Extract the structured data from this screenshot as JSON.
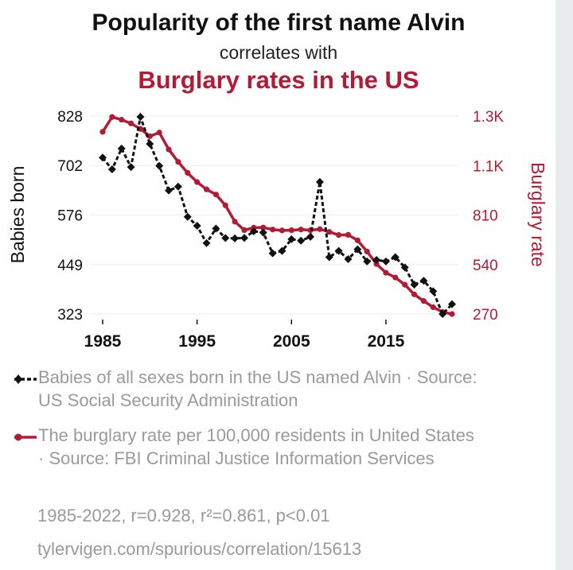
{
  "header": {
    "title": "Popularity of the first name Alvin",
    "subtitle": "correlates with",
    "title2": "Burglary rates in the US"
  },
  "colors": {
    "left_series": "#111111",
    "right_series": "#b31b34",
    "meta_text": "#9a9a9a"
  },
  "chart_data": {
    "type": "line",
    "x": [
      1985,
      1986,
      1987,
      1988,
      1989,
      1990,
      1991,
      1992,
      1993,
      1994,
      1995,
      1996,
      1997,
      1998,
      1999,
      2000,
      2001,
      2002,
      2003,
      2004,
      2005,
      2006,
      2007,
      2008,
      2009,
      2010,
      2011,
      2012,
      2013,
      2014,
      2015,
      2016,
      2017,
      2018,
      2019,
      2020,
      2021,
      2022
    ],
    "xticks": [
      1985,
      1995,
      2005,
      2015
    ],
    "xticklabels": [
      "1985",
      "1995",
      "2005",
      "2015"
    ],
    "series": [
      {
        "name": "Babies of all sexes born in the US named Alvin",
        "axis": "left",
        "style": "dashed-diamond",
        "values": [
          722,
          692,
          745,
          698,
          826,
          757,
          701,
          638,
          648,
          571,
          548,
          504,
          541,
          517,
          516,
          517,
          534,
          531,
          478,
          484,
          514,
          510,
          520,
          660,
          468,
          484,
          463,
          488,
          457,
          461,
          457,
          468,
          442,
          398,
          408,
          381,
          323,
          348
        ]
      },
      {
        "name": "The burglary rate per 100,000 residents in United States",
        "axis": "right",
        "style": "solid-dot",
        "values": [
          1264,
          1345,
          1330,
          1310,
          1280,
          1240,
          1260,
          1168,
          1100,
          1040,
          990,
          950,
          922,
          863,
          774,
          728,
          741,
          742,
          731,
          726,
          727,
          731,
          727,
          733,
          718,
          701,
          702,
          672,
          611,
          543,
          495,
          469,
          430,
          377,
          341,
          307,
          281,
          270
        ]
      }
    ],
    "left_axis": {
      "label": "Babies born",
      "ticks": [
        323,
        449,
        576,
        702,
        828
      ],
      "ticklabels": [
        "323",
        "449",
        "576",
        "702",
        "828"
      ],
      "ylim": [
        323,
        828
      ]
    },
    "right_axis": {
      "label": "Burglary rate",
      "ticks": [
        270,
        540,
        810,
        1080,
        1350
      ],
      "ticklabels": [
        "270",
        "540",
        "810",
        "1.1K",
        "1.3K"
      ],
      "ylim": [
        270,
        1350
      ]
    },
    "grid": "horizontal"
  },
  "legend": {
    "left_text": "Babies of all sexes born in the US named Alvin · Source: US Social Security Administration",
    "right_text": "The burglary rate per 100,000 residents in United States · Source: FBI Criminal Justice Information Services"
  },
  "stats": "1985-2022, r=0.928, r²=0.861, p<0.01",
  "source_url": "tylervigen.com/spurious/correlation/15613"
}
